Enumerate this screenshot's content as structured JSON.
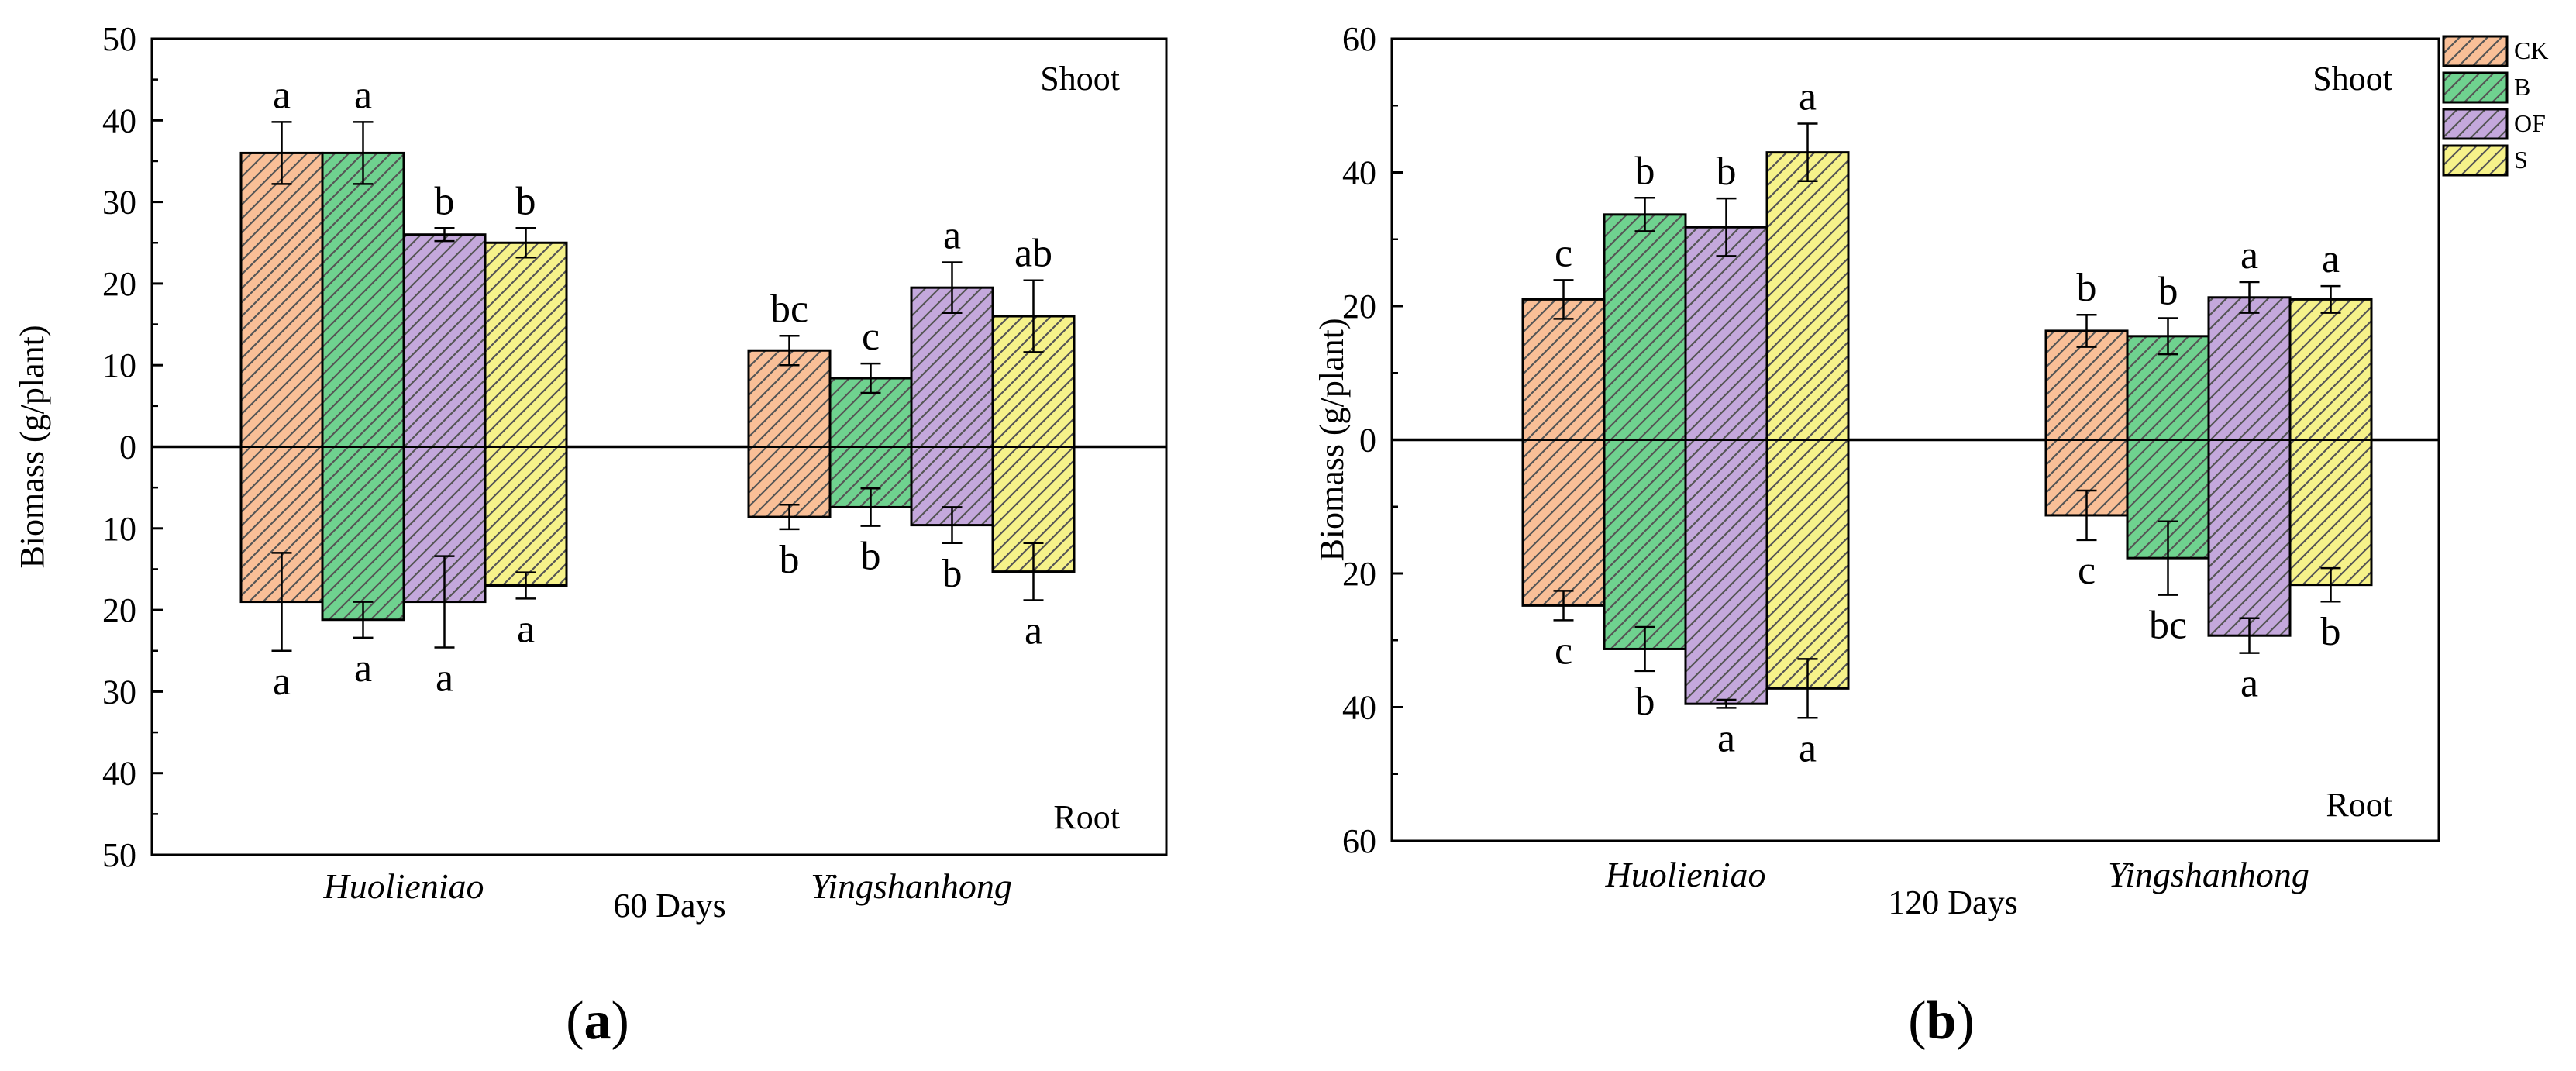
{
  "figure": {
    "panel_labels": [
      {
        "open": "(",
        "letter": "a",
        "close": ")"
      },
      {
        "open": "(",
        "letter": "b",
        "close": ")"
      }
    ],
    "colors": {
      "CK": "#f9bf97",
      "B": "#6fd28f",
      "OF": "#c4a8dc",
      "S": "#f6f28a",
      "hatch": "#555555"
    }
  },
  "chart_data": [
    {
      "type": "bar",
      "title": "",
      "xlabel": "60 Days",
      "ylabel": "Biomass (g/plant)",
      "ylim": [
        -50,
        50
      ],
      "yticks": [
        "50",
        "40",
        "30",
        "20",
        "10",
        "0",
        "10",
        "20",
        "30",
        "40",
        "50"
      ],
      "categories": [
        "Huolieniao",
        "Yingshanhong"
      ],
      "region_labels": {
        "top": "Shoot",
        "bottom": "Root"
      },
      "series": [
        {
          "name": "CK",
          "shoot": [
            36,
            11.8
          ],
          "shoot_err": [
            3.8,
            1.8
          ],
          "shoot_letters": [
            "a",
            "bc"
          ],
          "root": [
            19,
            8.6
          ],
          "root_err": [
            6,
            1.5
          ],
          "root_letters": [
            "a",
            "b"
          ]
        },
        {
          "name": "B",
          "shoot": [
            36,
            8.4
          ],
          "shoot_err": [
            3.8,
            1.8
          ],
          "shoot_letters": [
            "a",
            "c"
          ],
          "root": [
            21.2,
            7.4
          ],
          "root_err": [
            2.2,
            2.3
          ],
          "root_letters": [
            "a",
            "b"
          ]
        },
        {
          "name": "OF",
          "shoot": [
            26,
            19.5
          ],
          "shoot_err": [
            0.8,
            3.1
          ],
          "shoot_letters": [
            "b",
            "a"
          ],
          "root": [
            19,
            9.6
          ],
          "root_err": [
            5.6,
            2.2
          ],
          "root_letters": [
            "a",
            "b"
          ]
        },
        {
          "name": "S",
          "shoot": [
            25,
            16
          ],
          "shoot_err": [
            1.8,
            4.4
          ],
          "shoot_letters": [
            "b",
            "ab"
          ],
          "root": [
            17,
            15.3
          ],
          "root_err": [
            1.6,
            3.5
          ],
          "root_letters": [
            "a",
            "a"
          ]
        }
      ]
    },
    {
      "type": "bar",
      "title": "",
      "xlabel": "120 Days",
      "ylabel": "Biomass (g/plant)",
      "ylim": [
        -60,
        60
      ],
      "yticks": [
        "60",
        "40",
        "20",
        "0",
        "20",
        "40",
        "60"
      ],
      "categories": [
        "Huolieniao",
        "Yingshanhong"
      ],
      "region_labels": {
        "top": "Shoot",
        "bottom": "Root"
      },
      "legend": {
        "entries": [
          "CK",
          "B",
          "OF",
          "S"
        ],
        "position": "top-right"
      },
      "series": [
        {
          "name": "CK",
          "shoot": [
            21,
            16.3
          ],
          "shoot_err": [
            2.9,
            2.4
          ],
          "shoot_letters": [
            "c",
            "b"
          ],
          "root": [
            24.8,
            11.3
          ],
          "root_err": [
            2.2,
            3.7
          ],
          "root_letters": [
            "c",
            "c"
          ]
        },
        {
          "name": "B",
          "shoot": [
            33.7,
            15.5
          ],
          "shoot_err": [
            2.5,
            2.7
          ],
          "shoot_letters": [
            "b",
            "b"
          ],
          "root": [
            31.3,
            17.7
          ],
          "root_err": [
            3.3,
            5.5
          ],
          "root_letters": [
            "b",
            "bc"
          ]
        },
        {
          "name": "OF",
          "shoot": [
            31.8,
            21.3
          ],
          "shoot_err": [
            4.3,
            2.3
          ],
          "shoot_letters": [
            "b",
            "a"
          ],
          "root": [
            39.5,
            29.3
          ],
          "root_err": [
            0.6,
            2.6
          ],
          "root_letters": [
            "a",
            "a"
          ]
        },
        {
          "name": "S",
          "shoot": [
            43,
            21
          ],
          "shoot_err": [
            4.3,
            2
          ],
          "shoot_letters": [
            "a",
            "a"
          ],
          "root": [
            37.2,
            21.7
          ],
          "root_err": [
            4.4,
            2.5
          ],
          "root_letters": [
            "a",
            "b"
          ]
        }
      ]
    }
  ]
}
